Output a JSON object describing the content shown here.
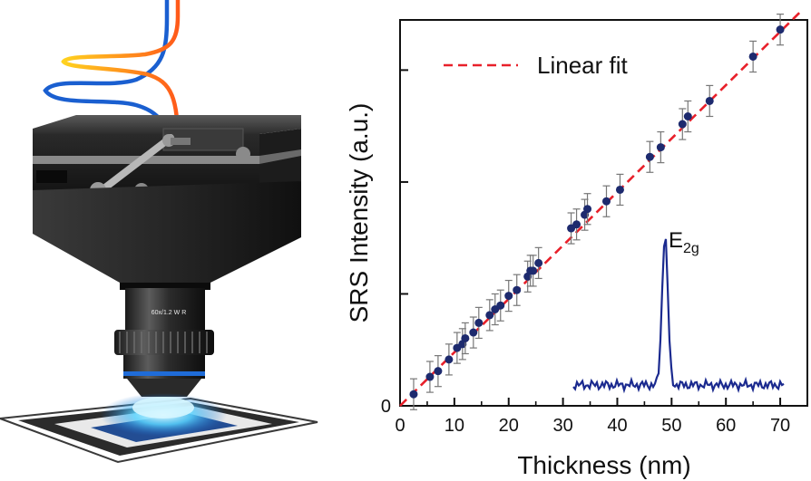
{
  "illustration": {
    "objective_label": "60x/1.2 W R"
  },
  "chart_data": {
    "type": "scatter",
    "title": "",
    "xlabel": "Thickness (nm)",
    "ylabel": "SRS Intensity (a.u.)",
    "xlim": [
      0,
      75
    ],
    "ylim": [
      0,
      1.0
    ],
    "xticks": [
      0,
      10,
      20,
      30,
      40,
      50,
      60,
      70
    ],
    "x_tick_labels": [
      "0",
      "10",
      "20",
      "30",
      "40",
      "50",
      "60",
      "70"
    ],
    "y_tick_labels": [
      "0"
    ],
    "legend": {
      "entries": [
        {
          "label": "Linear fit",
          "style": "dashed",
          "color": "#e8202a"
        }
      ],
      "placement": "top-left"
    },
    "series": [
      {
        "kind": "data",
        "color": "#1d2a6e",
        "x": [
          2.5,
          5.5,
          7.0,
          9.0,
          10.5,
          11.5,
          12.0,
          13.5,
          14.5,
          16.5,
          17.5,
          18.5,
          20.0,
          21.5,
          23.5,
          24.0,
          24.5,
          25.5,
          31.5,
          32.5,
          34.0,
          34.5,
          38.0,
          40.5,
          46.0,
          48.0,
          52.0,
          53.0,
          57.0,
          65.0,
          70.0
        ],
        "y": [
          0.03,
          0.075,
          0.09,
          0.12,
          0.15,
          0.16,
          0.175,
          0.19,
          0.215,
          0.235,
          0.25,
          0.26,
          0.285,
          0.3,
          0.335,
          0.35,
          0.35,
          0.37,
          0.46,
          0.47,
          0.495,
          0.51,
          0.53,
          0.56,
          0.645,
          0.67,
          0.73,
          0.75,
          0.79,
          0.905,
          0.975
        ],
        "error": 0.04
      },
      {
        "kind": "fit",
        "name": "Linear fit",
        "color": "#e8202a",
        "x": [
          0,
          74
        ],
        "y": [
          0,
          1.025
        ]
      }
    ],
    "inset": {
      "label_main": "E",
      "label_sub": "2g",
      "color": "#1b2a8f"
    }
  }
}
